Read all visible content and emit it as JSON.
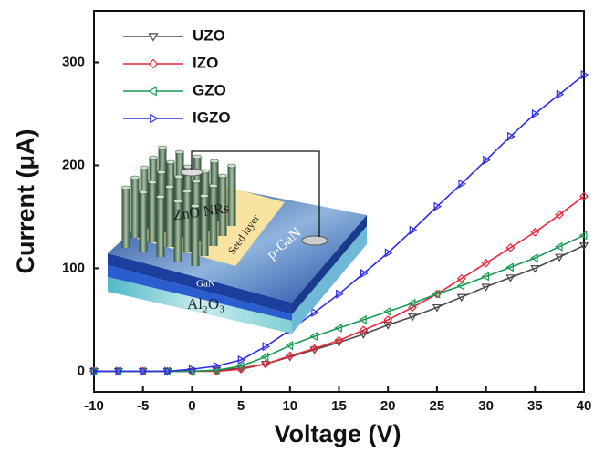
{
  "chart_data": {
    "type": "line",
    "xlabel": "Voltage (V)",
    "ylabel": "Current (μA)",
    "x": [
      -10,
      -7.5,
      -5,
      -2.5,
      0,
      2.5,
      5,
      7.5,
      10,
      12.5,
      15,
      17.5,
      20,
      22.5,
      25,
      27.5,
      30,
      32.5,
      35,
      37.5,
      40
    ],
    "series": [
      {
        "name": "UZO",
        "color": "#4a4a4a",
        "marker": "triangle-down",
        "values": [
          0,
          0,
          0,
          0,
          0,
          1,
          3,
          7,
          14,
          21,
          28,
          36,
          45,
          53,
          62,
          72,
          82,
          91,
          100,
          111,
          122
        ]
      },
      {
        "name": "IZO",
        "color": "#e8283c",
        "marker": "diamond",
        "values": [
          0,
          0,
          0,
          0,
          0,
          0,
          2,
          7,
          15,
          22,
          30,
          40,
          50,
          62,
          75,
          90,
          105,
          120,
          135,
          152,
          170
        ]
      },
      {
        "name": "GZO",
        "color": "#149a50",
        "marker": "triangle-left",
        "values": [
          0,
          0,
          0,
          0,
          0,
          1,
          5,
          14,
          25,
          34,
          42,
          50,
          58,
          66,
          75,
          83,
          92,
          101,
          110,
          121,
          132
        ]
      },
      {
        "name": "IGZO",
        "color": "#2e2ee6",
        "marker": "triangle-right",
        "values": [
          0,
          0,
          0,
          0,
          2,
          5,
          11,
          24,
          40,
          57,
          75,
          95,
          115,
          137,
          160,
          182,
          205,
          228,
          250,
          269,
          288
        ]
      }
    ],
    "xlim": [
      -10,
      40
    ],
    "xticks": [
      -10,
      -5,
      0,
      5,
      10,
      15,
      20,
      25,
      30,
      35,
      40
    ],
    "ylim": [
      -20,
      350
    ],
    "yticks": [
      0,
      100,
      200,
      300
    ],
    "legend": "upper left",
    "inset_labels": [
      "ZnO NRs",
      "Seed layer",
      "p-GaN",
      "GaN",
      "Al₂O₃"
    ]
  }
}
